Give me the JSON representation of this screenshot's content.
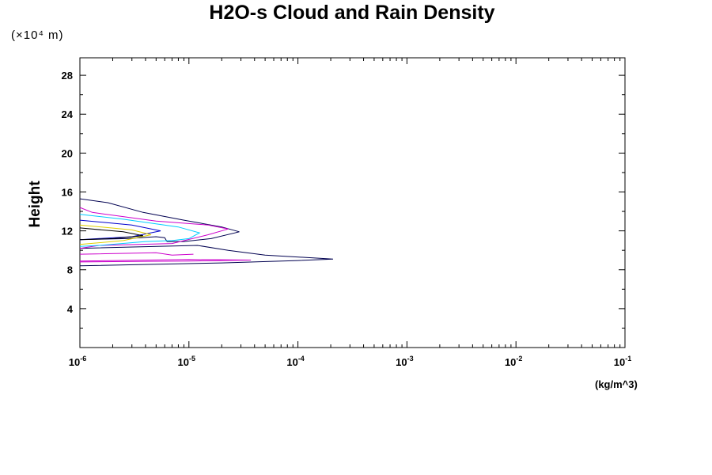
{
  "chart_data": {
    "type": "line",
    "title": "H2O-s Cloud and Rain Density",
    "ylabel": "Height",
    "yunit": "(×10⁴ m)",
    "xunit": "(kg/m^3)",
    "x_scale": "log",
    "xlim": [
      1e-06,
      0.1
    ],
    "ylim": [
      0,
      29.8
    ],
    "x_ticks": [
      {
        "base": "10",
        "exp": "-6",
        "value": 1e-06
      },
      {
        "base": "10",
        "exp": "-5",
        "value": 1e-05
      },
      {
        "base": "10",
        "exp": "-4",
        "value": 0.0001
      },
      {
        "base": "10",
        "exp": "-3",
        "value": 0.001
      },
      {
        "base": "10",
        "exp": "-2",
        "value": 0.01
      },
      {
        "base": "10",
        "exp": "-1",
        "value": 0.1
      }
    ],
    "y_ticks": [
      {
        "label": "4",
        "value": 4
      },
      {
        "label": "8",
        "value": 8
      },
      {
        "label": "12",
        "value": 12
      },
      {
        "label": "16",
        "value": 16
      },
      {
        "label": "20",
        "value": 20
      },
      {
        "label": "24",
        "value": 24
      },
      {
        "label": "28",
        "value": 28
      }
    ],
    "grid": false,
    "series": [
      {
        "color": "#000050",
        "points": [
          [
            1e-06,
            15.3
          ],
          [
            1.8e-06,
            14.9
          ],
          [
            3.8e-06,
            13.9
          ],
          [
            9e-06,
            13.1
          ],
          [
            2e-05,
            12.4
          ],
          [
            2.9e-05,
            11.9
          ],
          [
            1.6e-05,
            11.2
          ],
          [
            9e-06,
            10.9
          ],
          [
            6.3e-06,
            10.9
          ],
          [
            6e-06,
            11.3
          ],
          [
            5e-06,
            11.4
          ],
          [
            2.7e-06,
            11.2
          ],
          [
            1e-06,
            11.1
          ]
        ]
      },
      {
        "color": "#000050",
        "points": [
          [
            1e-06,
            10.2
          ],
          [
            1.2e-05,
            10.5
          ],
          [
            2.3e-05,
            10.0
          ],
          [
            5e-05,
            9.5
          ],
          [
            0.00021,
            9.1
          ],
          [
            0.0001,
            8.95
          ],
          [
            2e-05,
            8.7
          ],
          [
            1e-06,
            8.4
          ]
        ]
      },
      {
        "color": "#cc00cc",
        "points": [
          [
            1e-06,
            14.4
          ],
          [
            1.3e-06,
            13.9
          ],
          [
            5e-06,
            13.0
          ],
          [
            1.5e-05,
            12.6
          ],
          [
            2.3e-05,
            12.2
          ],
          [
            1.5e-05,
            11.6
          ],
          [
            7e-06,
            10.7
          ],
          [
            1.5e-06,
            10.5
          ],
          [
            1e-06,
            10.2
          ]
        ]
      },
      {
        "color": "#cc00cc",
        "points": [
          [
            1e-06,
            9.6
          ],
          [
            5e-06,
            9.75
          ],
          [
            7e-06,
            9.5
          ],
          [
            1.1e-05,
            9.6
          ]
        ]
      },
      {
        "color": "#cc00cc",
        "points": [
          [
            1e-06,
            8.9
          ],
          [
            1e-05,
            9.05
          ],
          [
            3.7e-05,
            9.0
          ],
          [
            1e-05,
            8.9
          ],
          [
            1e-06,
            8.8
          ]
        ]
      },
      {
        "color": "#00ccff",
        "points": [
          [
            1e-06,
            13.7
          ],
          [
            2.5e-06,
            13.2
          ],
          [
            8e-06,
            12.4
          ],
          [
            1.25e-05,
            11.8
          ],
          [
            1e-05,
            11.2
          ],
          [
            7e-06,
            11.0
          ],
          [
            4e-06,
            10.9
          ],
          [
            1.5e-06,
            10.5
          ],
          [
            1e-06,
            10.4
          ]
        ]
      },
      {
        "color": "#0000cc",
        "points": [
          [
            1e-06,
            13.1
          ],
          [
            3e-06,
            12.6
          ],
          [
            5.5e-06,
            12.0
          ],
          [
            3e-06,
            11.4
          ],
          [
            1e-06,
            11.1
          ]
        ]
      },
      {
        "color": "#e0d000",
        "points": [
          [
            1e-06,
            12.6
          ],
          [
            3e-06,
            12.1
          ],
          [
            4.5e-06,
            11.6
          ],
          [
            2.5e-06,
            11.0
          ],
          [
            1e-06,
            10.6
          ]
        ]
      },
      {
        "color": "#000000",
        "points": [
          [
            1e-06,
            12.3
          ],
          [
            2.5e-06,
            11.9
          ],
          [
            3.8e-06,
            11.5
          ],
          [
            2e-06,
            11.2
          ],
          [
            1e-06,
            11.1
          ]
        ]
      }
    ]
  }
}
